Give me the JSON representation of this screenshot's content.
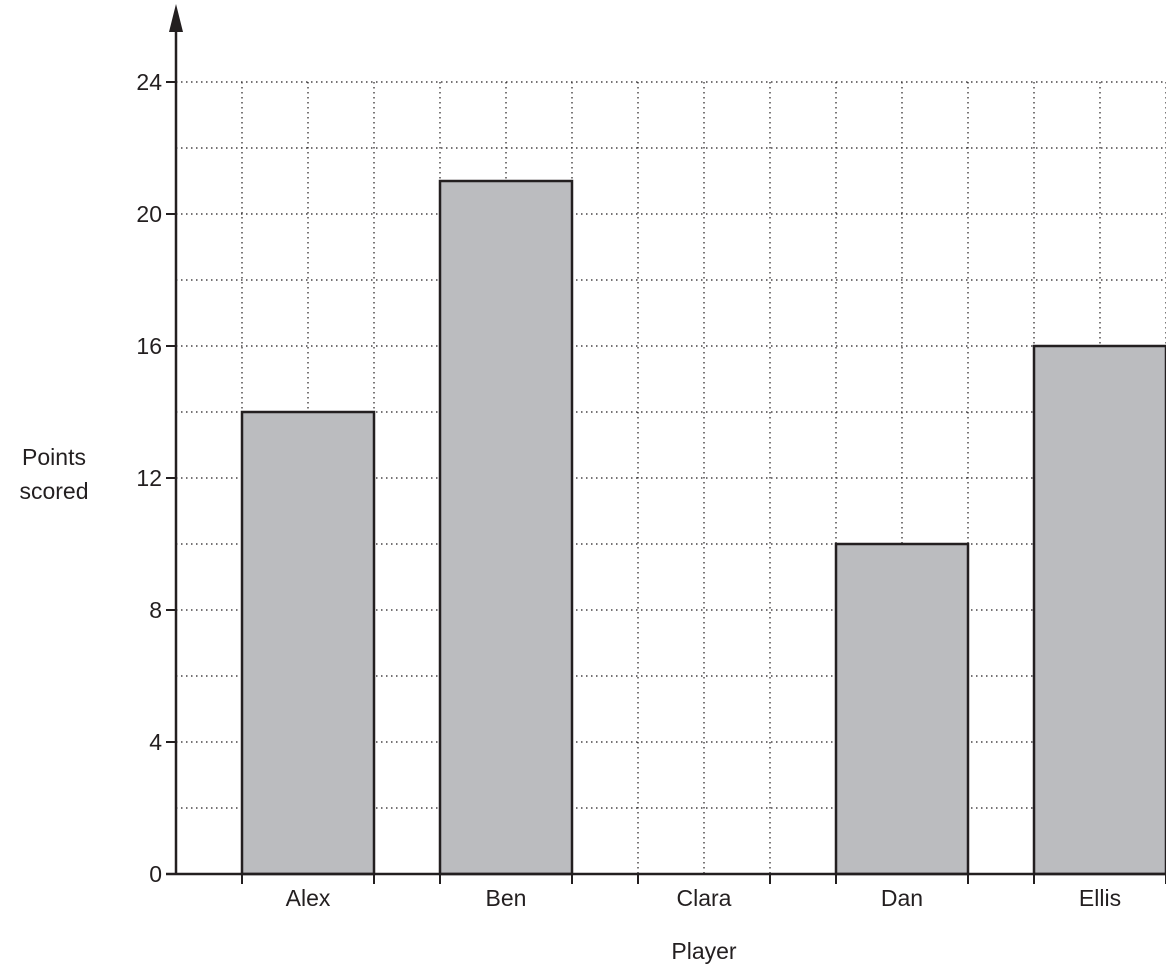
{
  "chart_data": {
    "type": "bar",
    "categories": [
      "Alex",
      "Ben",
      "Clara",
      "Dan",
      "Ellis"
    ],
    "values": [
      14,
      21,
      0,
      10,
      16
    ],
    "xlabel": "Player",
    "ylabel": [
      "Points",
      "scored"
    ],
    "ylim": [
      0,
      24
    ],
    "yticks": [
      "0",
      "4",
      "8",
      "12",
      "16",
      "20",
      "24"
    ],
    "grid": true,
    "colors": {
      "bar_fill": "#bbbcbf",
      "bar_stroke": "#231f20",
      "axis": "#231f20",
      "grid": "#231f20"
    }
  }
}
